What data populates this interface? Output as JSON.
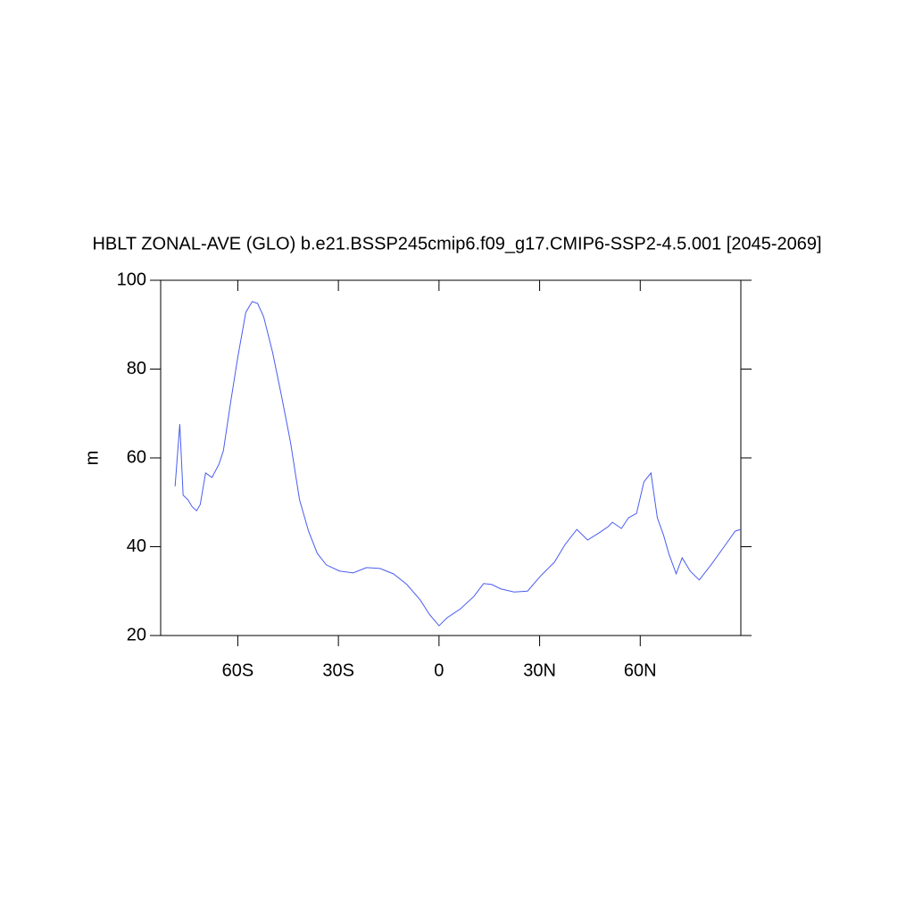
{
  "chart_data": {
    "type": "line",
    "title": "HBLT ZONAL-AVE (GLO) b.e21.BSSP245cmip6.f09_g17.CMIP6-SSP2-4.5.001 [2045-2069]",
    "y_label": "m",
    "xlim": [
      -83,
      90
    ],
    "ylim": [
      20,
      100
    ],
    "xticks": [
      {
        "value": -60,
        "label": "60S"
      },
      {
        "value": -30,
        "label": "30S"
      },
      0,
      {
        "value": 30,
        "label": "30N"
      },
      {
        "value": 60,
        "label": "60N"
      }
    ],
    "yticks": [
      20,
      40,
      60,
      80,
      100
    ],
    "x": [
      -78.7,
      -77.3,
      -76.3,
      -74.9,
      -73.6,
      -72.3,
      -71.2,
      -69.6,
      -67.7,
      -65.6,
      -64.3,
      -62.1,
      -60,
      -57.6,
      -55.7,
      -54.1,
      -52.3,
      -49.6,
      -46.9,
      -44.3,
      -41.6,
      -38.9,
      -36.3,
      -33.6,
      -29.6,
      -25.6,
      -21.6,
      -17.6,
      -13.6,
      -9.6,
      -5.6,
      -2.9,
      0,
      2.4,
      6.4,
      10.4,
      13.3,
      15.7,
      18.4,
      22.4,
      26.4,
      30.4,
      34.4,
      37.6,
      41.1,
      44.3,
      47.7,
      50.4,
      51.7,
      54.4,
      56.5,
      58.9,
      61.1,
      63.2,
      65.1,
      67,
      68.5,
      70.7,
      72.5,
      74.9,
      77.6,
      81.1,
      85.1,
      88.3,
      90
    ],
    "series": [
      {
        "color": "#4a5cf0",
        "values": [
          53.6,
          67.6,
          51.6,
          50.6,
          49,
          48.1,
          49.5,
          56.6,
          55.6,
          58.6,
          61.6,
          72.7,
          82.7,
          92.8,
          95.2,
          94.8,
          91.8,
          83.7,
          73.7,
          63.6,
          50.6,
          43.5,
          38.5,
          35.9,
          34.5,
          34.1,
          35.3,
          35.1,
          33.9,
          31.5,
          28,
          24.8,
          22.2,
          24,
          26,
          28.8,
          31.7,
          31.5,
          30.5,
          29.8,
          30,
          33.5,
          36.5,
          40.5,
          43.9,
          41.5,
          43.1,
          44.5,
          45.5,
          44.1,
          46.5,
          47.5,
          54.6,
          56.6,
          46.5,
          42.5,
          38.5,
          33.9,
          37.5,
          34.5,
          32.5,
          35.9,
          40.1,
          43.5,
          43.9
        ]
      }
    ]
  }
}
